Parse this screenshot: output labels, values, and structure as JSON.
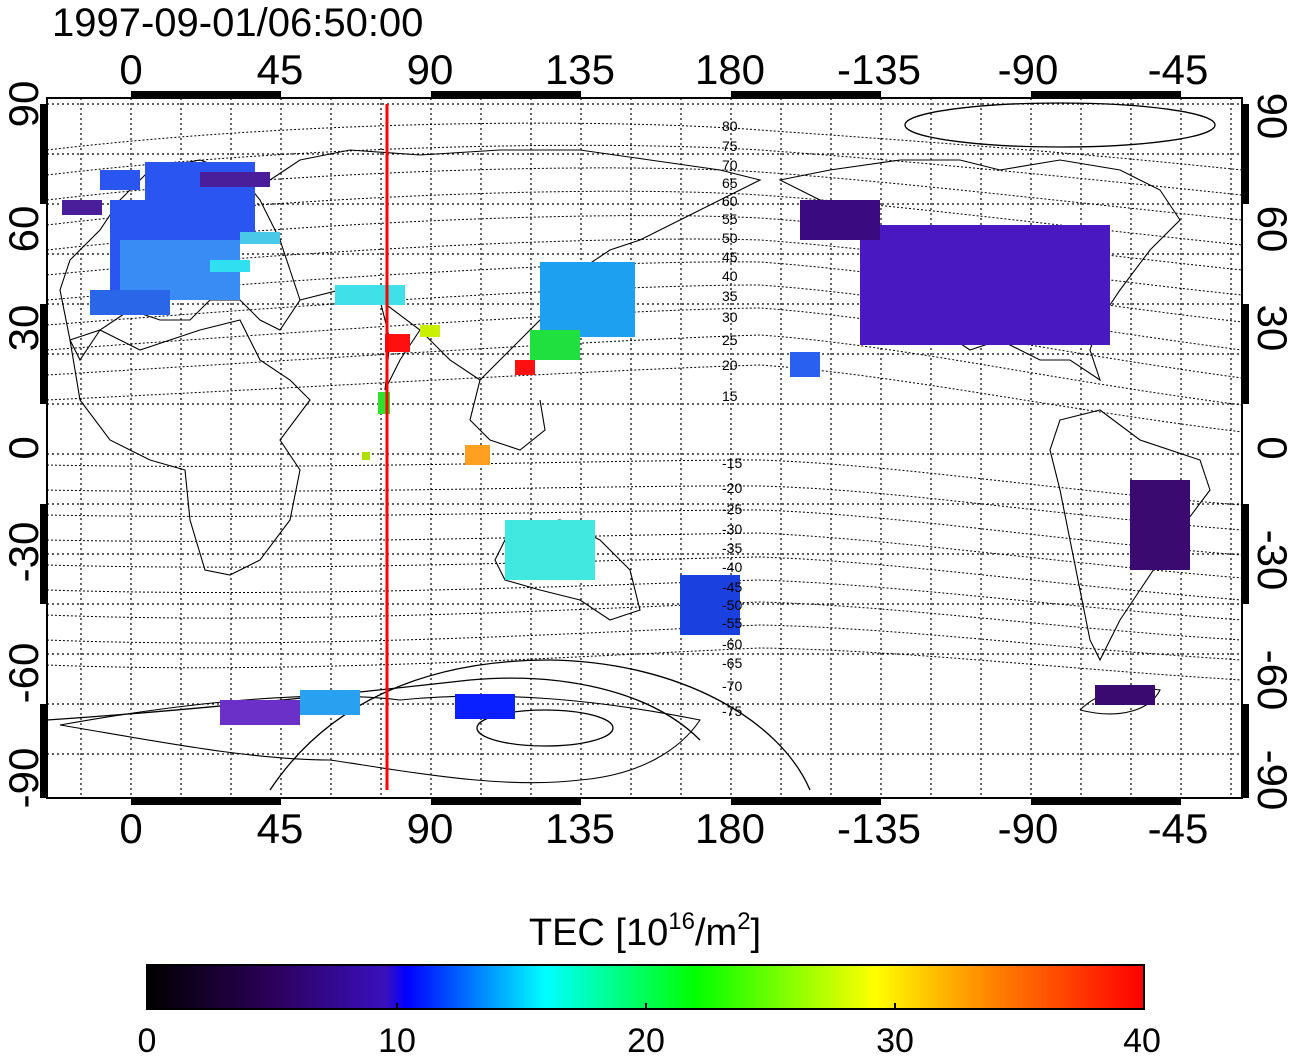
{
  "title": "1997-09-01/06:50:00",
  "map": {
    "lon_ticks": [
      "0",
      "45",
      "90",
      "135",
      "180",
      "-135",
      "-90",
      "-45"
    ],
    "lat_ticks_left": [
      "90",
      "60",
      "30",
      "0",
      "-30",
      "-60",
      "-90"
    ],
    "lat_ticks_right": [
      "90",
      "60",
      "30",
      "0",
      "-30",
      "-60",
      "-90"
    ],
    "contour_labels": [
      "80",
      "75",
      "70",
      "65",
      "60",
      "55",
      "50",
      "45",
      "40",
      "35",
      "30",
      "25",
      "20",
      "15",
      "-15",
      "-20",
      "-25",
      "-30",
      "-35",
      "-40",
      "-45",
      "-50",
      "-55",
      "-60",
      "-65",
      "-70",
      "-75"
    ],
    "meridian_line_lon": 77,
    "meridian_line_color": "#ff0000"
  },
  "colorbar": {
    "title_prefix": "TEC  [10",
    "title_sup1": "16",
    "title_mid": "/m",
    "title_sup2": "2",
    "title_suffix": "]",
    "ticks": [
      "0",
      "10",
      "20",
      "30",
      "40"
    ],
    "range": [
      0,
      40
    ],
    "colors": [
      "#000000",
      "#3a0070",
      "#0000ff",
      "#00ffff",
      "#00ff00",
      "#ffff00",
      "#ff8000",
      "#ff0000"
    ]
  }
}
